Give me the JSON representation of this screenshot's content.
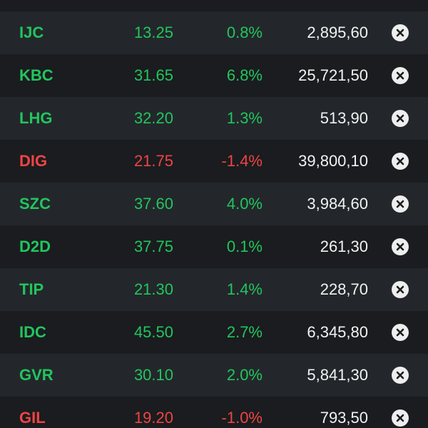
{
  "colors": {
    "up": "#22c55e",
    "down": "#ef4444",
    "value": "#f2f2f2",
    "row_odd": "#23272b",
    "row_even": "#1a1c1f"
  },
  "rows": [
    {
      "symbol": "IJC",
      "price": "13.25",
      "change": "0.8%",
      "volume": "2,895,60",
      "trend": "up",
      "icon": "close-circle-icon"
    },
    {
      "symbol": "KBC",
      "price": "31.65",
      "change": "6.8%",
      "volume": "25,721,50",
      "trend": "up",
      "icon": "close-circle-icon"
    },
    {
      "symbol": "LHG",
      "price": "32.20",
      "change": "1.3%",
      "volume": "513,90",
      "trend": "up",
      "icon": "close-circle-icon"
    },
    {
      "symbol": "DIG",
      "price": "21.75",
      "change": "-1.4%",
      "volume": "39,800,10",
      "trend": "down",
      "icon": "close-circle-icon"
    },
    {
      "symbol": "SZC",
      "price": "37.60",
      "change": "4.0%",
      "volume": "3,984,60",
      "trend": "up",
      "icon": "close-circle-icon"
    },
    {
      "symbol": "D2D",
      "price": "37.75",
      "change": "0.1%",
      "volume": "261,30",
      "trend": "up",
      "icon": "close-circle-icon"
    },
    {
      "symbol": "TIP",
      "price": "21.30",
      "change": "1.4%",
      "volume": "228,70",
      "trend": "up",
      "icon": "close-circle-icon"
    },
    {
      "symbol": "IDC",
      "price": "45.50",
      "change": "2.7%",
      "volume": "6,345,80",
      "trend": "up",
      "icon": "close-circle-icon"
    },
    {
      "symbol": "GVR",
      "price": "30.10",
      "change": "2.0%",
      "volume": "5,841,30",
      "trend": "up",
      "icon": "close-circle-icon"
    },
    {
      "symbol": "GIL",
      "price": "19.20",
      "change": "-1.0%",
      "volume": "793,50",
      "trend": "down",
      "icon": "close-circle-icon"
    }
  ]
}
